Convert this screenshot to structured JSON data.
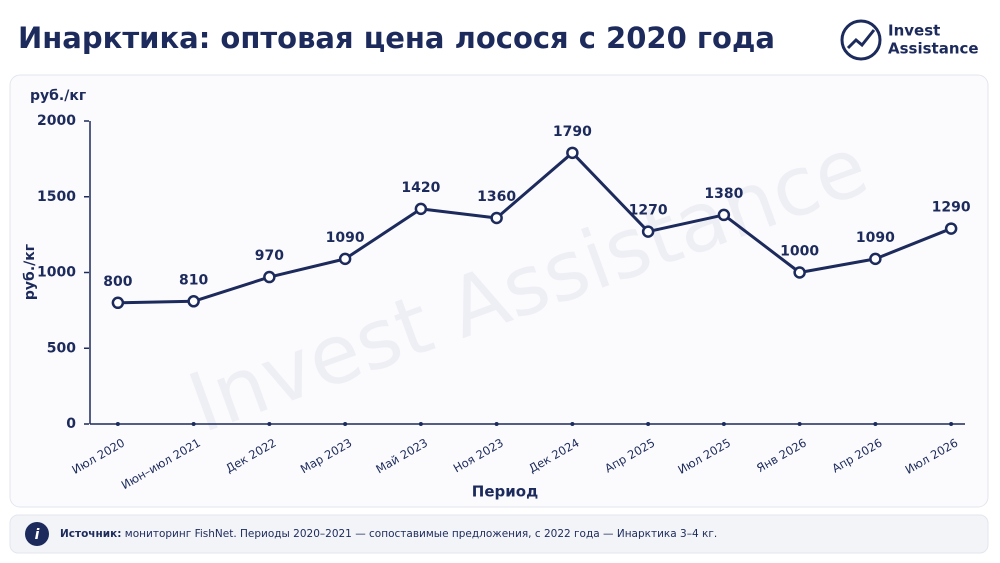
{
  "chart_data": {
    "type": "line",
    "title": "Инарктика: оптовая цена лосося с 2020 года",
    "unit_label": "руб./кг",
    "y_label": "руб./кг",
    "x_label": "Период",
    "categories": [
      "Июл 2020",
      "Июн–июл 2021",
      "Дек 2022",
      "Мар 2023",
      "Май 2023",
      "Ноя 2023",
      "Дек 2024",
      "Апр 2025",
      "Июл 2025",
      "Янв 2026",
      "Апр 2026",
      "Июл 2026"
    ],
    "values": [
      800,
      810,
      970,
      1090,
      1420,
      1360,
      1790,
      1270,
      1380,
      1000,
      1090,
      1290
    ],
    "color": "#1c2a5c",
    "ylim": [
      0,
      2000
    ],
    "yticks": [
      0,
      500,
      1000,
      1500,
      2000
    ],
    "grid": false
  },
  "brand": {
    "line1": "Invest",
    "line2": "Assistance"
  },
  "watermark": "Invest Assistance",
  "source": {
    "label": "Источник:",
    "text": " мониторинг FishNet. Периоды 2020–2021 — сопоставимые предложения, с 2022 года — Инарктика 3–4 кг."
  }
}
